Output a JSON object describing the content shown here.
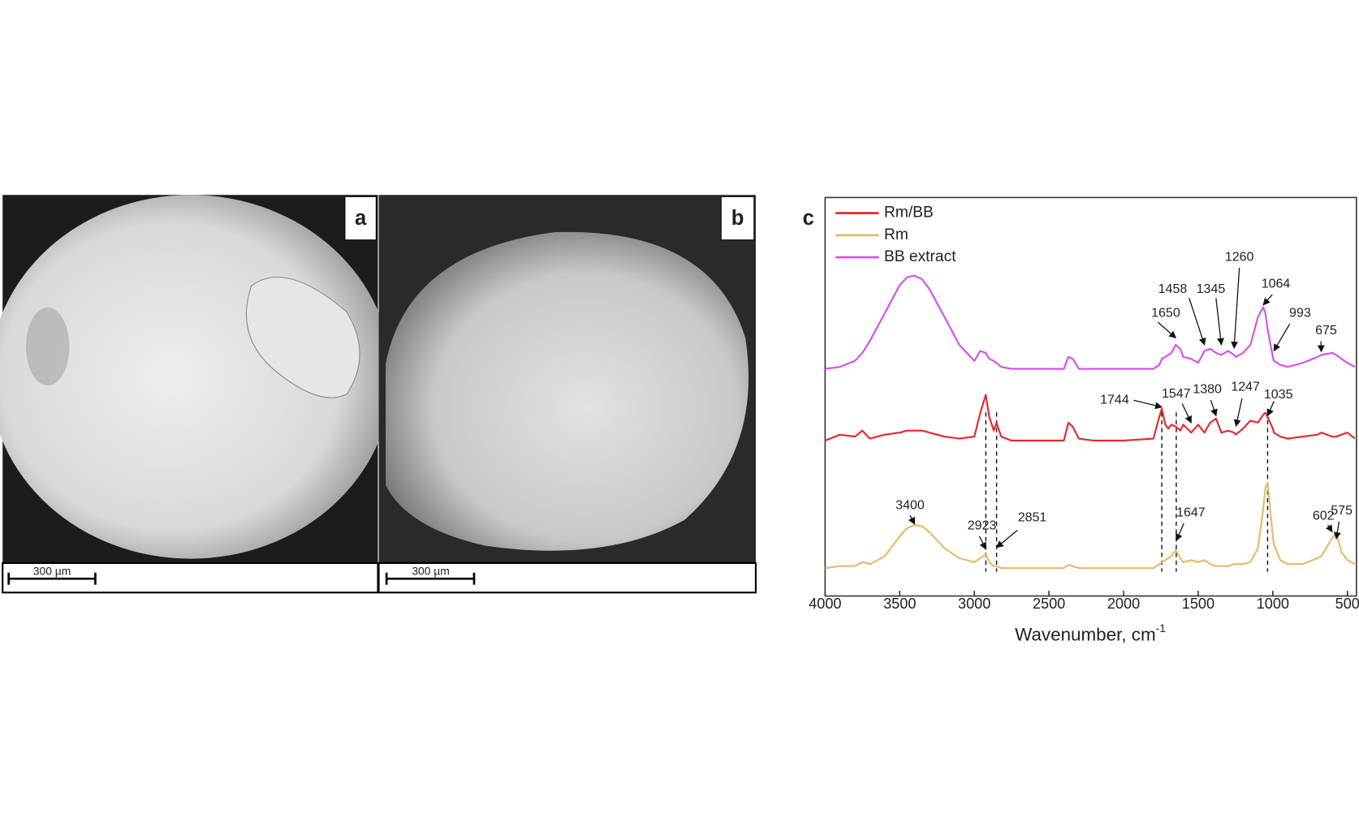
{
  "panels": [
    {
      "label": "a",
      "scale_bar": "300 µm"
    },
    {
      "label": "b",
      "scale_bar": "300 µm"
    }
  ],
  "chart_data": {
    "type": "line",
    "panel_label": "c",
    "xlabel": "Wavenumber, cm",
    "xlabel_superscript": "-1",
    "xlim": [
      4000,
      440
    ],
    "xticks": [
      4000,
      3500,
      3000,
      2500,
      2000,
      1500,
      1000,
      500
    ],
    "ylim": [
      0,
      100
    ],
    "legend": "upper left",
    "x": [
      4000,
      3900,
      3800,
      3750,
      3700,
      3600,
      3500,
      3450,
      3400,
      3350,
      3300,
      3200,
      3100,
      3000,
      2960,
      2923,
      2900,
      2870,
      2851,
      2820,
      2750,
      2600,
      2400,
      2370,
      2340,
      2300,
      2200,
      2000,
      1800,
      1760,
      1744,
      1720,
      1700,
      1680,
      1650,
      1620,
      1600,
      1547,
      1500,
      1458,
      1420,
      1380,
      1345,
      1300,
      1260,
      1247,
      1200,
      1150,
      1100,
      1064,
      1050,
      1035,
      1000,
      993,
      950,
      900,
      800,
      700,
      675,
      602,
      575,
      540,
      500,
      450
    ],
    "series": [
      {
        "name": "Rm/BB",
        "color": "#e8262b",
        "values": [
          39,
          40.5,
          40,
          41.5,
          39.5,
          40.5,
          41,
          41.5,
          41.5,
          41.5,
          41,
          40,
          39.5,
          40,
          46,
          50.5,
          45,
          41.5,
          43.5,
          40,
          39,
          39,
          39,
          43.5,
          42.5,
          39.5,
          39,
          39,
          39.5,
          45,
          47,
          43,
          42,
          43,
          42.5,
          41.5,
          43,
          41,
          43,
          41,
          43.5,
          44.5,
          41,
          41.5,
          41,
          40.5,
          42,
          44,
          43.5,
          45.5,
          46,
          45,
          42,
          41,
          40,
          39.5,
          40,
          40.5,
          41,
          40,
          40,
          40.5,
          41,
          39.5
        ]
      },
      {
        "name": "Rm",
        "color": "#e8b86a",
        "values": [
          7,
          7.5,
          7.5,
          8.5,
          8,
          10,
          15,
          17,
          17.8,
          17.5,
          16,
          12,
          9.5,
          8.5,
          9.5,
          10.5,
          8.5,
          7.5,
          7.5,
          7,
          7,
          7,
          7,
          7.8,
          7.5,
          7,
          7,
          7,
          7,
          8,
          8.5,
          9,
          9.5,
          10,
          11.5,
          9.5,
          8.5,
          9,
          8.5,
          9,
          8,
          7.5,
          7.5,
          7.5,
          8,
          8,
          8,
          8.5,
          12,
          22,
          27,
          28.5,
          15,
          13,
          9,
          8,
          8,
          9.5,
          10,
          14.5,
          16,
          11,
          9,
          8
        ]
      },
      {
        "name": "BB extract",
        "color": "#d54ef0",
        "values": [
          57,
          57.5,
          59,
          61,
          64,
          71,
          78,
          80,
          80.4,
          79.5,
          77,
          70,
          63,
          59,
          61.5,
          61,
          59.5,
          59,
          58.5,
          57.5,
          57,
          57,
          57,
          60,
          59.5,
          57,
          57,
          57,
          57,
          58,
          59.5,
          60,
          60.5,
          61,
          63,
          62,
          60,
          59.5,
          58.5,
          61.5,
          62,
          61,
          60.5,
          61.5,
          60.5,
          60,
          61,
          63,
          70,
          72.5,
          71,
          67,
          60,
          59,
          58,
          57.5,
          58.5,
          60,
          60.5,
          61,
          60.5,
          59.5,
          58.5,
          57.5
        ]
      }
    ],
    "annotations": [
      1650,
      1458,
      1345,
      1260,
      1064,
      993,
      675,
      1744,
      1547,
      1380,
      1247,
      1035,
      3400,
      2923,
      2851,
      1647,
      602,
      575
    ],
    "dashed_lines": [
      2923,
      2851,
      1744,
      1647,
      1035
    ]
  }
}
